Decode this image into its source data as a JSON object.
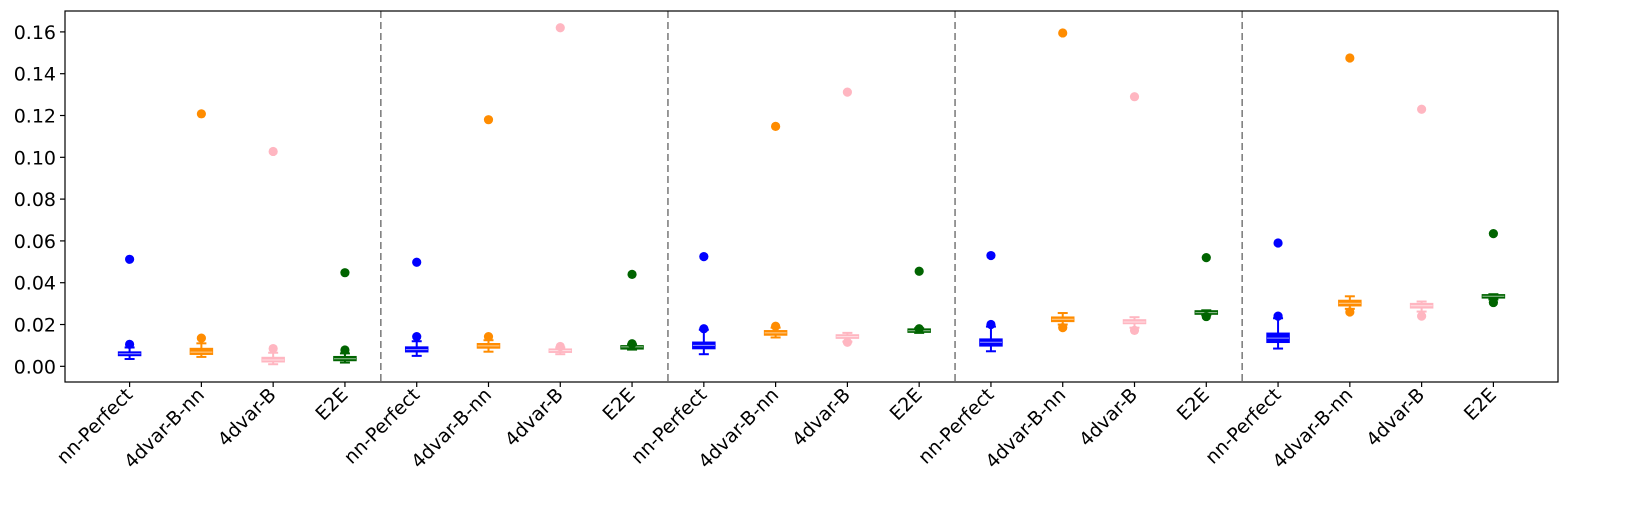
{
  "chart_data": {
    "type": "box",
    "title": "",
    "xlabel": "",
    "ylabel": "",
    "ylim": [
      -0.0075,
      0.17
    ],
    "yticks": [
      0.0,
      0.02,
      0.04,
      0.06,
      0.08,
      0.1,
      0.12,
      0.14,
      0.16
    ],
    "ytick_labels": [
      "0.00",
      "0.02",
      "0.04",
      "0.06",
      "0.08",
      "0.10",
      "0.12",
      "0.14",
      "0.16"
    ],
    "grid": false,
    "legend": "none",
    "group_separator_style": "dashed",
    "categories": [
      "nn-Perfect",
      "4dvar-B-nn",
      "4dvar-B",
      "E2E"
    ],
    "colors": {
      "nn-Perfect": "#0000ff",
      "4dvar-B-nn": "#ff8c00",
      "4dvar-B": "#ffb6c1",
      "E2E": "#006400"
    },
    "groups": [
      {
        "boxes": [
          {
            "category": "nn-Perfect",
            "whisker_low": 0.0035,
            "q1": 0.0052,
            "median": 0.006,
            "q3": 0.0068,
            "whisker_high": 0.009,
            "outliers": [
              0.0105,
              0.0512
            ]
          },
          {
            "category": "4dvar-B-nn",
            "whisker_low": 0.0045,
            "q1": 0.0058,
            "median": 0.0068,
            "q3": 0.0085,
            "whisker_high": 0.011,
            "outliers": [
              0.0135,
              0.1208
            ]
          },
          {
            "category": "4dvar-B",
            "whisker_low": 0.001,
            "q1": 0.0022,
            "median": 0.003,
            "q3": 0.0042,
            "whisker_high": 0.0065,
            "outliers": [
              0.0085,
              0.1028
            ]
          },
          {
            "category": "E2E",
            "whisker_low": 0.0018,
            "q1": 0.0028,
            "median": 0.0036,
            "q3": 0.0046,
            "whisker_high": 0.0062,
            "outliers": [
              0.0078,
              0.0448
            ]
          }
        ]
      },
      {
        "boxes": [
          {
            "category": "nn-Perfect",
            "whisker_low": 0.005,
            "q1": 0.007,
            "median": 0.008,
            "q3": 0.0092,
            "whisker_high": 0.012,
            "outliers": [
              0.0142,
              0.0498
            ]
          },
          {
            "category": "4dvar-B-nn",
            "whisker_low": 0.007,
            "q1": 0.0088,
            "median": 0.0098,
            "q3": 0.0108,
            "whisker_high": 0.0125,
            "outliers": [
              0.0142,
              0.118
            ]
          },
          {
            "category": "4dvar-B",
            "whisker_low": 0.0058,
            "q1": 0.0068,
            "median": 0.0075,
            "q3": 0.0082,
            "whisker_high": 0.009,
            "outliers": [
              0.0095,
              0.162
            ]
          },
          {
            "category": "E2E",
            "whisker_low": 0.008,
            "q1": 0.0088,
            "median": 0.0093,
            "q3": 0.0098,
            "whisker_high": 0.0105,
            "outliers": [
              0.0108,
              0.044
            ]
          }
        ]
      },
      {
        "boxes": [
          {
            "category": "nn-Perfect",
            "whisker_low": 0.0058,
            "q1": 0.0085,
            "median": 0.01,
            "q3": 0.0115,
            "whisker_high": 0.0175,
            "outliers": [
              0.018,
              0.0525
            ]
          },
          {
            "category": "4dvar-B-nn",
            "whisker_low": 0.0138,
            "q1": 0.015,
            "median": 0.016,
            "q3": 0.017,
            "whisker_high": 0.0185,
            "outliers": [
              0.0192,
              0.1148
            ]
          },
          {
            "category": "4dvar-B",
            "whisker_low": 0.0118,
            "q1": 0.0135,
            "median": 0.0142,
            "q3": 0.015,
            "whisker_high": 0.016,
            "outliers": [
              0.0115,
              0.1312
            ]
          },
          {
            "category": "E2E",
            "whisker_low": 0.016,
            "q1": 0.0165,
            "median": 0.017,
            "q3": 0.0178,
            "whisker_high": 0.0182,
            "outliers": [
              0.018,
              0.0455
            ]
          }
        ]
      },
      {
        "boxes": [
          {
            "category": "nn-Perfect",
            "whisker_low": 0.0072,
            "q1": 0.0098,
            "median": 0.0115,
            "q3": 0.013,
            "whisker_high": 0.019,
            "outliers": [
              0.02,
              0.053
            ]
          },
          {
            "category": "4dvar-B-nn",
            "whisker_low": 0.02,
            "q1": 0.0215,
            "median": 0.0225,
            "q3": 0.0235,
            "whisker_high": 0.0255,
            "outliers": [
              0.0185,
              0.1595
            ]
          },
          {
            "category": "4dvar-B",
            "whisker_low": 0.0185,
            "q1": 0.0205,
            "median": 0.0212,
            "q3": 0.0222,
            "whisker_high": 0.0235,
            "outliers": [
              0.0172,
              0.129
            ]
          },
          {
            "category": "E2E",
            "whisker_low": 0.0245,
            "q1": 0.025,
            "median": 0.0257,
            "q3": 0.0265,
            "whisker_high": 0.0268,
            "outliers": [
              0.0238,
              0.052
            ]
          }
        ]
      },
      {
        "boxes": [
          {
            "category": "nn-Perfect",
            "whisker_low": 0.0085,
            "q1": 0.0115,
            "median": 0.0135,
            "q3": 0.0158,
            "whisker_high": 0.023,
            "outliers": [
              0.024,
              0.059
            ]
          },
          {
            "category": "4dvar-B-nn",
            "whisker_low": 0.0275,
            "q1": 0.029,
            "median": 0.0302,
            "q3": 0.0315,
            "whisker_high": 0.0335,
            "outliers": [
              0.026,
              0.1475
            ]
          },
          {
            "category": "4dvar-B",
            "whisker_low": 0.0262,
            "q1": 0.028,
            "median": 0.029,
            "q3": 0.03,
            "whisker_high": 0.031,
            "outliers": [
              0.024,
              0.123
            ]
          },
          {
            "category": "E2E",
            "whisker_low": 0.032,
            "q1": 0.0328,
            "median": 0.0335,
            "q3": 0.0342,
            "whisker_high": 0.0345,
            "outliers": [
              0.0305,
              0.0635
            ]
          }
        ]
      }
    ]
  }
}
